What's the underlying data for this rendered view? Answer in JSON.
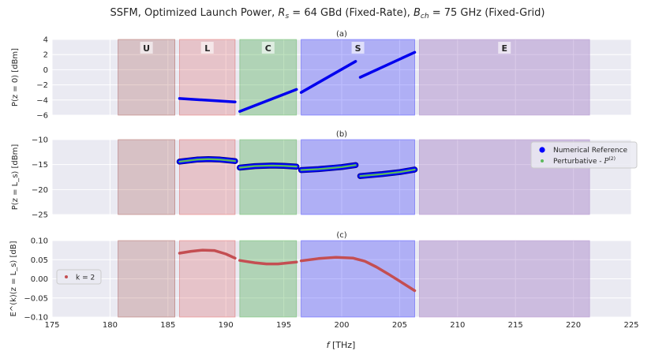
{
  "figure": {
    "suptitle_main": "SSFM, Optimized Launch Power, ",
    "suptitle_rs": "R",
    "suptitle_rs_sub": "s",
    "suptitle_rs_val": " = 64 GBd (Fixed-Rate), ",
    "suptitle_bch": "B",
    "suptitle_bch_sub": "ch",
    "suptitle_bch_val": " = 75 GHz (Fixed-Grid)",
    "xlabel_italic": "f",
    "xlabel_unit": " [THz]"
  },
  "bands": [
    {
      "label": "U",
      "start": 180.7,
      "end": 185.6,
      "color": "#8c1c13",
      "alpha": 0.2
    },
    {
      "label": "L",
      "start": 186.0,
      "end": 190.8,
      "color": "#d62728",
      "alpha": 0.2
    },
    {
      "label": "C",
      "start": 191.2,
      "end": 196.1,
      "color": "#2ca02c",
      "alpha": 0.3
    },
    {
      "label": "S",
      "start": 196.5,
      "end": 206.3,
      "color": "#0000ff",
      "alpha": 0.25
    },
    {
      "label": "E",
      "start": 206.7,
      "end": 221.4,
      "color": "#9467bd",
      "alpha": 0.35
    }
  ],
  "chart_data": [
    {
      "type": "line",
      "title": "(a)",
      "ylabel": "P(z = 0) [dBm]",
      "xlim": [
        175,
        225
      ],
      "ylim": [
        -6,
        4
      ],
      "xticks": [
        175,
        180,
        185,
        190,
        195,
        200,
        205,
        210,
        215,
        220,
        225
      ],
      "yticks": [
        -6,
        -4,
        -2,
        0,
        2,
        4
      ],
      "series": [
        {
          "segments": [
            [
              [
                186.0,
                -3.8
              ],
              [
                190.8,
                -4.25
              ]
            ],
            [
              [
                191.2,
                -5.5
              ],
              [
                196.1,
                -2.6
              ]
            ],
            [
              [
                196.5,
                -3.0
              ],
              [
                201.2,
                1.1
              ]
            ],
            [
              [
                201.6,
                -1.0
              ],
              [
                206.3,
                2.3
              ]
            ]
          ]
        }
      ]
    },
    {
      "type": "line",
      "title": "(b)",
      "ylabel": "P(z = L_s) [dBm]",
      "xlim": [
        175,
        225
      ],
      "ylim": [
        -25,
        -10
      ],
      "yticks": [
        -25,
        -20,
        -15,
        -10
      ],
      "legend": "top-right",
      "series": [
        {
          "name": "Numerical Reference",
          "marker": "dot",
          "color": "#0000ff",
          "segments": [
            [
              [
                186.0,
                -14.4
              ],
              [
                187.5,
                -14.0
              ],
              [
                188.5,
                -13.9
              ],
              [
                189.5,
                -14.0
              ],
              [
                190.8,
                -14.3
              ]
            ],
            [
              [
                191.2,
                -15.6
              ],
              [
                192.5,
                -15.3
              ],
              [
                194.0,
                -15.2
              ],
              [
                195.0,
                -15.25
              ],
              [
                196.1,
                -15.4
              ]
            ],
            [
              [
                196.5,
                -16.1
              ],
              [
                198.0,
                -15.9
              ],
              [
                200.0,
                -15.5
              ],
              [
                201.2,
                -15.1
              ]
            ],
            [
              [
                201.6,
                -17.3
              ],
              [
                203.5,
                -16.9
              ],
              [
                205.0,
                -16.5
              ],
              [
                206.3,
                -16.0
              ]
            ]
          ]
        },
        {
          "name": "Perturbative - P(2)",
          "marker": "dot",
          "color": "#5cb85c",
          "segments": [
            [
              [
                186.0,
                -14.4
              ],
              [
                187.5,
                -14.0
              ],
              [
                188.5,
                -13.9
              ],
              [
                189.5,
                -14.0
              ],
              [
                190.8,
                -14.3
              ]
            ],
            [
              [
                191.2,
                -15.6
              ],
              [
                192.5,
                -15.3
              ],
              [
                194.0,
                -15.2
              ],
              [
                195.0,
                -15.25
              ],
              [
                196.1,
                -15.4
              ]
            ],
            [
              [
                196.5,
                -16.1
              ],
              [
                198.0,
                -15.9
              ],
              [
                200.0,
                -15.5
              ],
              [
                201.2,
                -15.1
              ]
            ],
            [
              [
                201.6,
                -17.3
              ],
              [
                203.5,
                -16.9
              ],
              [
                205.0,
                -16.5
              ],
              [
                206.3,
                -16.0
              ]
            ]
          ]
        }
      ]
    },
    {
      "type": "line",
      "title": "(c)",
      "ylabel": "E^(k)(z = L_s) [dB]",
      "xlim": [
        175,
        225
      ],
      "ylim": [
        -0.1,
        0.1
      ],
      "yticks": [
        -0.1,
        -0.05,
        0.0,
        0.05,
        0.1
      ],
      "yticklabels": [
        "−0.10",
        "−0.05",
        "0.00",
        "0.05",
        "0.10"
      ],
      "legend": "center-left",
      "series": [
        {
          "name": "k = 2",
          "marker": "dot",
          "color": "#c44e52",
          "segments": [
            [
              [
                186.0,
                0.067
              ],
              [
                187.0,
                0.072
              ],
              [
                188.0,
                0.075
              ],
              [
                189.0,
                0.074
              ],
              [
                190.0,
                0.065
              ],
              [
                190.8,
                0.054
              ]
            ],
            [
              [
                191.2,
                0.048
              ],
              [
                192.5,
                0.042
              ],
              [
                193.5,
                0.039
              ],
              [
                194.5,
                0.039
              ],
              [
                195.5,
                0.042
              ],
              [
                196.1,
                0.044
              ]
            ],
            [
              [
                196.5,
                0.047
              ],
              [
                198.0,
                0.053
              ],
              [
                199.5,
                0.056
              ],
              [
                201.0,
                0.054
              ],
              [
                202.0,
                0.046
              ],
              [
                203.0,
                0.031
              ],
              [
                204.0,
                0.013
              ],
              [
                205.0,
                -0.006
              ],
              [
                206.3,
                -0.031
              ]
            ]
          ]
        }
      ]
    }
  ]
}
